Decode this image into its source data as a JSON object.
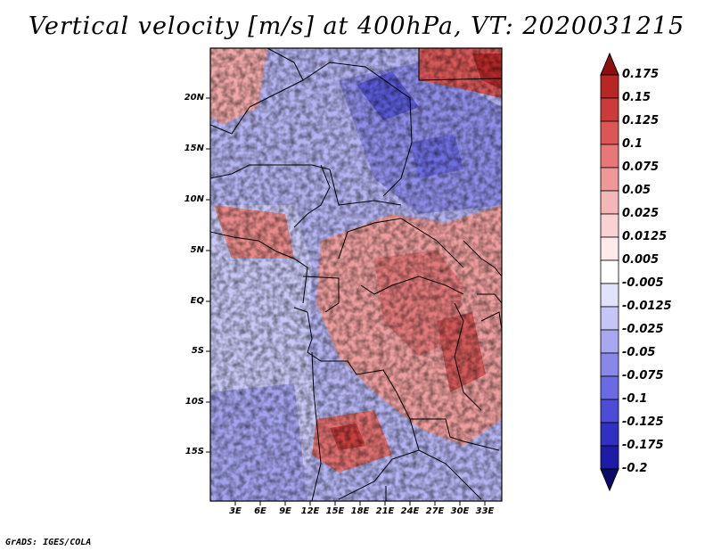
{
  "title": "Vertical velocity [m/s] at 400hPa, VT: 2020031215",
  "footer": "GrADS: IGES/COLA",
  "map": {
    "lat_labels": [
      "20N",
      "15N",
      "10N",
      "5N",
      "EQ",
      "5S",
      "10S",
      "15S"
    ],
    "lon_labels": [
      "3E",
      "6E",
      "9E",
      "12E",
      "15E",
      "18E",
      "21E",
      "24E",
      "27E",
      "30E",
      "33E"
    ]
  },
  "colorbar": {
    "levels": [
      "0.175",
      "0.15",
      "0.125",
      "0.1",
      "0.075",
      "0.05",
      "0.025",
      "0.0125",
      "0.005",
      "-0.005",
      "-0.0125",
      "-0.025",
      "-0.05",
      "-0.075",
      "-0.1",
      "-0.125",
      "-0.175",
      "-0.2"
    ],
    "colors": [
      "#a01818",
      "#b82626",
      "#cc3a3a",
      "#dc5656",
      "#e67878",
      "#ee9898",
      "#f4b6b6",
      "#f9d2d2",
      "#fdeaea",
      "#ffffff",
      "#e2e2fb",
      "#c6c6f6",
      "#a8a8f0",
      "#8888ea",
      "#6a6ae2",
      "#4c4cd6",
      "#3030c2",
      "#1c1ca6",
      "#10107e"
    ],
    "top_arrow_color": "#8e0e0e",
    "bottom_arrow_color": "#0a0a6a"
  }
}
